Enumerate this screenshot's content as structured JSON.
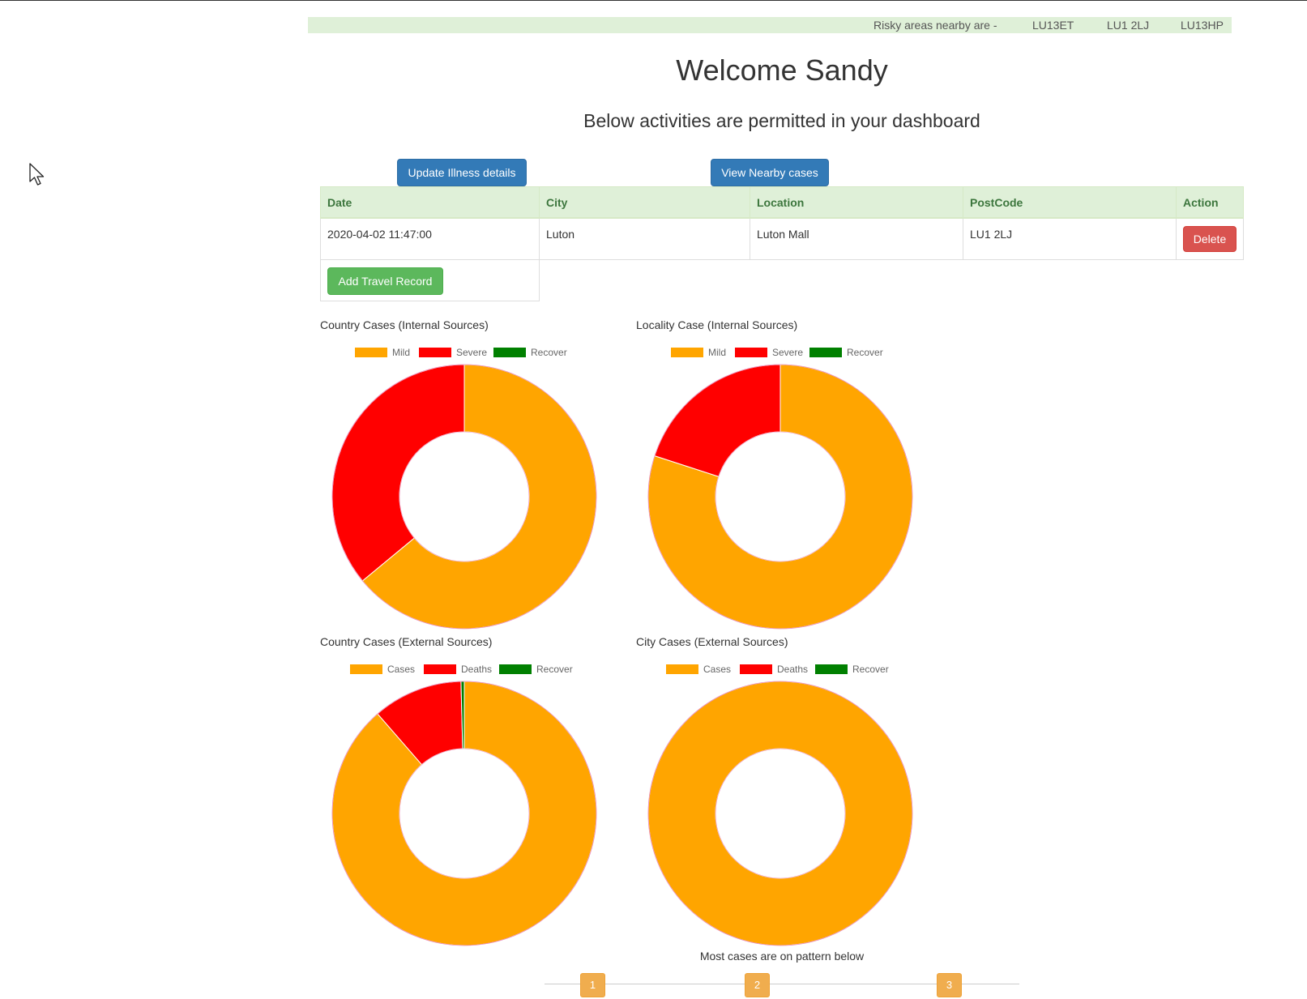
{
  "risk_bar": {
    "label": "Risky areas nearby are -",
    "areas": [
      "LU13ET",
      "LU1 2LJ",
      "LU13HP"
    ]
  },
  "header": {
    "welcome": "Welcome Sandy",
    "subtitle": "Below activities are permitted in your dashboard"
  },
  "actions": {
    "update_illness": "Update Illness details",
    "view_nearby": "View Nearby cases",
    "add_travel": "Add Travel Record"
  },
  "table": {
    "columns": [
      "Date",
      "City",
      "Location",
      "PostCode",
      "Action"
    ],
    "rows": [
      {
        "date": "2020-04-02 11:47:00",
        "city": "Luton",
        "location": "Luton Mall",
        "postcode": "LU1 2LJ",
        "action": "Delete"
      }
    ]
  },
  "chart_data": [
    {
      "type": "pie",
      "title": "Country Cases (Internal Sources)",
      "categories": [
        "Mild",
        "Severe",
        "Recover"
      ],
      "values": [
        64,
        36,
        0
      ],
      "colors": [
        "#FFA500",
        "#FF0000",
        "#008000"
      ]
    },
    {
      "type": "pie",
      "title": "Locality Case (Internal Sources)",
      "categories": [
        "Mild",
        "Severe",
        "Recover"
      ],
      "values": [
        80,
        20,
        0
      ],
      "colors": [
        "#FFA500",
        "#FF0000",
        "#008000"
      ]
    },
    {
      "type": "pie",
      "title": "Country Cases (External Sources)",
      "categories": [
        "Cases",
        "Deaths",
        "Recover"
      ],
      "values": [
        88.6,
        11,
        0.4
      ],
      "colors": [
        "#FFA500",
        "#FF0000",
        "#008000"
      ]
    },
    {
      "type": "pie",
      "title": "City Cases (External Sources)",
      "categories": [
        "Cases",
        "Deaths",
        "Recover"
      ],
      "values": [
        100,
        0,
        0
      ],
      "colors": [
        "#FFA500",
        "#FF0000",
        "#008000"
      ]
    }
  ],
  "pattern": {
    "text": "Most cases are on pattern below",
    "steps": [
      "1",
      "2",
      "3"
    ]
  }
}
